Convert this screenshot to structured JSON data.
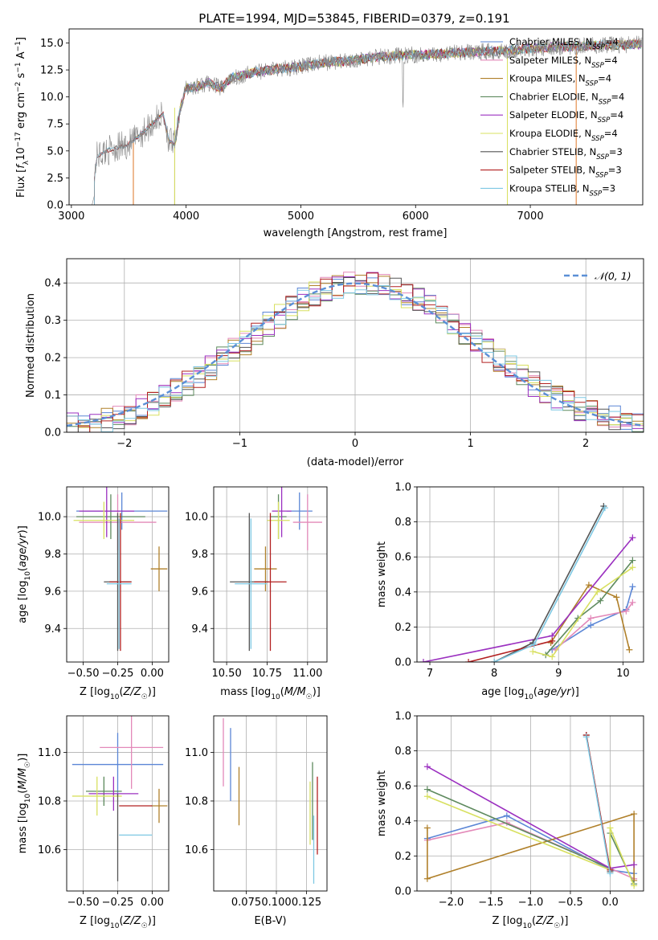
{
  "figure": {
    "title": "PLATE=1994, MJD=53845, FIBERID=0379, z=0.191"
  },
  "colors": {
    "Chabrier MILES": "#5b86d6",
    "Salpeter MILES": "#e389b9",
    "Kroupa MILES": "#b0802a",
    "Chabrier ELODIE": "#5e8a5e",
    "Salpeter ELODIE": "#9b30c0",
    "Kroupa ELODIE": "#d8e060",
    "Chabrier STELIB": "#555555",
    "Salpeter STELIB": "#b22020",
    "Kroupa STELIB": "#7ec8e3",
    "orange": "#e0782a",
    "green": "#5e8a5e",
    "gray": "#888888"
  },
  "chart_data": [
    {
      "id": "spectrum",
      "type": "line",
      "title": "PLATE=1994, MJD=53845, FIBERID=0379, z=0.191",
      "xlabel": "wavelength [Angstrom, rest frame]",
      "ylabel": "Flux [f_λ 10^-17 erg cm^-2 s^-1 A^-1]",
      "xlim": [
        2980,
        7980
      ],
      "ylim": [
        0,
        16.3
      ],
      "xticks": [
        3000,
        4000,
        5000,
        6000,
        7000
      ],
      "yticks": [
        0.0,
        2.5,
        5.0,
        7.5,
        10.0,
        12.5,
        15.0
      ],
      "ytick_labels": [
        "0.0",
        "2.5",
        "5.0",
        "7.5",
        "10.0",
        "12.5",
        "15.0"
      ],
      "legend": "top-right",
      "legend_entries": [
        {
          "name": "Chabrier MILES, N_SSP=4",
          "base": "Chabrier MILES, N",
          "sub": "SSP",
          "tail": "=4"
        },
        {
          "name": "Salpeter MILES, N_SSP=4",
          "base": "Salpeter MILES, N",
          "sub": "SSP",
          "tail": "=4"
        },
        {
          "name": "Kroupa MILES, N_SSP=4",
          "base": "Kroupa MILES, N",
          "sub": "SSP",
          "tail": "=4"
        },
        {
          "name": "Chabrier ELODIE, N_SSP=4",
          "base": "Chabrier ELODIE, N",
          "sub": "SSP",
          "tail": "=4"
        },
        {
          "name": "Salpeter ELODIE, N_SSP=4",
          "base": "Salpeter ELODIE, N",
          "sub": "SSP",
          "tail": "=4"
        },
        {
          "name": "Kroupa ELODIE, N_SSP=4",
          "base": "Kroupa ELODIE, N",
          "sub": "SSP",
          "tail": "=4"
        },
        {
          "name": "Chabrier STELIB, N_SSP=3",
          "base": "Chabrier STELIB, N",
          "sub": "SSP",
          "tail": "=3"
        },
        {
          "name": "Salpeter STELIB, N_SSP=3",
          "base": "Salpeter STELIB, N",
          "sub": "SSP",
          "tail": "=3"
        },
        {
          "name": "Kroupa STELIB, N_SSP=3",
          "base": "Kroupa STELIB, N",
          "sub": "SSP",
          "tail": "=3"
        }
      ],
      "observed": {
        "x": [
          3180,
          3220,
          3300,
          3400,
          3500,
          3600,
          3700,
          3800,
          3850,
          3900,
          3950,
          4000,
          4100,
          4200,
          4300,
          4400,
          4500,
          4600,
          4800,
          5000,
          5200,
          5400,
          5600,
          5800,
          6000,
          6200,
          6400,
          6600,
          6800,
          7000,
          7200,
          7400,
          7600,
          7800,
          7980
        ],
        "y": [
          0.0,
          4.5,
          5.0,
          5.3,
          5.6,
          6.5,
          7.5,
          8.4,
          6.0,
          5.5,
          9.0,
          10.8,
          11.0,
          11.3,
          10.8,
          11.8,
          12.0,
          12.3,
          12.6,
          12.8,
          13.2,
          13.3,
          13.6,
          13.8,
          13.9,
          14.0,
          14.1,
          14.2,
          14.3,
          14.5,
          14.6,
          14.7,
          14.8,
          14.8,
          14.9
        ]
      },
      "model_cutoffs": {
        "MILES": 3540,
        "ELODIE": 3900,
        "STELIB": 3200
      },
      "model_end": {
        "ELODIE": 6800,
        "STELIB": 7400
      }
    },
    {
      "id": "residuals",
      "type": "histogram",
      "xlabel": "(data-model)/error",
      "ylabel": "Normed distribution",
      "xlim": [
        -2.5,
        2.5
      ],
      "ylim": [
        0,
        0.465
      ],
      "xticks": [
        -2,
        -1,
        0,
        1,
        2
      ],
      "xtick_labels": [
        "−2",
        "−1",
        "0",
        "1",
        "2"
      ],
      "yticks": [
        0.0,
        0.1,
        0.2,
        0.3,
        0.4
      ],
      "ytick_labels": [
        "0.0",
        "0.1",
        "0.2",
        "0.3",
        "0.4"
      ],
      "grid": true,
      "legend": "top-right",
      "reference_label": "𝒩(0, 1)",
      "reference": {
        "type": "normal",
        "mean": 0,
        "sigma": 1
      },
      "bin_width": 0.1
    },
    {
      "id": "age-vs-Z",
      "type": "scatter",
      "xlabel": "Z [log10(Z/Z☉)]",
      "ylabel": "age  [log10(age/yr)]",
      "xlim": [
        -0.62,
        0.12
      ],
      "ylim": [
        9.22,
        10.16
      ],
      "xticks": [
        -0.5,
        -0.25,
        0.0
      ],
      "xtick_labels": [
        "−0.50",
        "−0.25",
        "0.00"
      ],
      "yticks": [
        9.4,
        9.6,
        9.8,
        10.0
      ],
      "ytick_labels": [
        "9.4",
        "9.6",
        "9.8",
        "10.0"
      ],
      "grid": true,
      "errorbars": [
        {
          "model": "Chabrier MILES",
          "x": -0.22,
          "xerr": 0.33,
          "y": 10.03,
          "yerr": 0.1
        },
        {
          "model": "Salpeter MILES",
          "x": -0.25,
          "xerr": 0.28,
          "y": 9.97,
          "yerr": 0.15
        },
        {
          "model": "Kroupa MILES",
          "x": 0.05,
          "xerr": 0.06,
          "y": 9.72,
          "yerr": 0.12
        },
        {
          "model": "Chabrier ELODIE",
          "x": -0.3,
          "xerr": 0.25,
          "y": 10.0,
          "yerr": 0.12
        },
        {
          "model": "Salpeter ELODIE",
          "x": -0.33,
          "xerr": 0.2,
          "y": 10.03,
          "yerr": 0.14
        },
        {
          "model": "Kroupa ELODIE",
          "x": -0.35,
          "xerr": 0.22,
          "y": 9.98,
          "yerr": 0.1
        },
        {
          "model": "Chabrier STELIB",
          "x": -0.25,
          "xerr": 0.1,
          "y": 9.65,
          "yerr": 0.37
        },
        {
          "model": "Salpeter STELIB",
          "x": -0.23,
          "xerr": 0.08,
          "y": 9.65,
          "yerr": 0.37
        },
        {
          "model": "Kroupa STELIB",
          "x": -0.24,
          "xerr": 0.09,
          "y": 9.64,
          "yerr": 0.35
        }
      ]
    },
    {
      "id": "age-vs-mass",
      "type": "scatter",
      "xlabel": "mass [log10(M/M☉)]",
      "xlim": [
        10.42,
        11.12
      ],
      "ylim": [
        9.22,
        10.16
      ],
      "xticks": [
        10.5,
        10.75,
        11.0
      ],
      "xtick_labels": [
        "10.50",
        "10.75",
        "11.00"
      ],
      "yticks": [
        9.4,
        9.6,
        9.8,
        10.0
      ],
      "ytick_labels": [
        "9.4",
        "9.6",
        "9.8",
        "10.0"
      ],
      "grid": true,
      "errorbars": [
        {
          "model": "Chabrier MILES",
          "x": 10.95,
          "xerr": 0.08,
          "y": 10.03,
          "yerr": 0.1
        },
        {
          "model": "Salpeter MILES",
          "x": 11.0,
          "xerr": 0.09,
          "y": 9.97,
          "yerr": 0.15
        },
        {
          "model": "Kroupa MILES",
          "x": 10.74,
          "xerr": 0.07,
          "y": 9.72,
          "yerr": 0.12
        },
        {
          "model": "Chabrier ELODIE",
          "x": 10.82,
          "xerr": 0.05,
          "y": 10.0,
          "yerr": 0.12
        },
        {
          "model": "Salpeter ELODIE",
          "x": 10.84,
          "xerr": 0.06,
          "y": 10.03,
          "yerr": 0.14
        },
        {
          "model": "Kroupa ELODIE",
          "x": 10.82,
          "xerr": 0.07,
          "y": 9.98,
          "yerr": 0.1
        },
        {
          "model": "Chabrier STELIB",
          "x": 10.64,
          "xerr": 0.12,
          "y": 9.65,
          "yerr": 0.37
        },
        {
          "model": "Salpeter STELIB",
          "x": 10.77,
          "xerr": 0.1,
          "y": 9.65,
          "yerr": 0.37
        },
        {
          "model": "Kroupa STELIB",
          "x": 10.65,
          "xerr": 0.1,
          "y": 9.64,
          "yerr": 0.35
        }
      ]
    },
    {
      "id": "massweight-vs-age",
      "type": "line",
      "xlabel": "age  [log10(age/yr)]",
      "ylabel": "mass weight",
      "xlim": [
        6.8,
        10.32
      ],
      "ylim": [
        0,
        1.0
      ],
      "xticks": [
        7,
        8,
        9,
        10
      ],
      "xtick_labels": [
        "7",
        "8",
        "9",
        "10"
      ],
      "yticks": [
        0.0,
        0.2,
        0.4,
        0.6,
        0.8,
        1.0
      ],
      "ytick_labels": [
        "0.0",
        "0.2",
        "0.4",
        "0.6",
        "0.8",
        "1.0"
      ],
      "grid": true,
      "series": [
        {
          "model": "Chabrier MILES",
          "x": [
            8.9,
            9.5,
            10.05,
            10.15
          ],
          "y": [
            0.07,
            0.21,
            0.3,
            0.43
          ]
        },
        {
          "model": "Salpeter MILES",
          "x": [
            8.95,
            9.5,
            10.05,
            10.15
          ],
          "y": [
            0.07,
            0.25,
            0.29,
            0.34
          ]
        },
        {
          "model": "Kroupa MILES",
          "x": [
            8.88,
            9.47,
            9.9,
            10.1
          ],
          "y": [
            0.11,
            0.44,
            0.37,
            0.07
          ]
        },
        {
          "model": "Chabrier ELODIE",
          "x": [
            8.8,
            9.3,
            9.65,
            10.15
          ],
          "y": [
            0.04,
            0.25,
            0.35,
            0.58
          ]
        },
        {
          "model": "Salpeter ELODIE",
          "x": [
            6.9,
            8.9,
            10.15
          ],
          "y": [
            0.0,
            0.15,
            0.71
          ]
        },
        {
          "model": "Kroupa ELODIE",
          "x": [
            8.6,
            8.9,
            9.6,
            10.15
          ],
          "y": [
            0.06,
            0.03,
            0.4,
            0.54
          ]
        },
        {
          "model": "Chabrier STELIB",
          "x": [
            8.0,
            8.6,
            9.7
          ],
          "y": [
            0.0,
            0.11,
            0.89
          ]
        },
        {
          "model": "Salpeter STELIB",
          "x": [
            7.6,
            8.9
          ],
          "y": [
            0.0,
            0.12
          ]
        },
        {
          "model": "Kroupa STELIB",
          "x": [
            8.0,
            8.62,
            9.72
          ],
          "y": [
            0.0,
            0.1,
            0.88
          ]
        }
      ]
    },
    {
      "id": "mass-vs-Z",
      "type": "scatter",
      "xlabel": "Z [log10(Z/Z☉)]",
      "ylabel": "mass [log10(M/M☉)]",
      "xlim": [
        -0.62,
        0.12
      ],
      "ylim": [
        10.43,
        11.15
      ],
      "xticks": [
        -0.5,
        -0.25,
        0.0
      ],
      "xtick_labels": [
        "−0.50",
        "−0.25",
        "0.00"
      ],
      "yticks": [
        10.6,
        10.8,
        11.0
      ],
      "ytick_labels": [
        "10.6",
        "10.8",
        "11.0"
      ],
      "grid": true,
      "errorbars": [
        {
          "model": "Chabrier MILES",
          "x": -0.25,
          "xerr": 0.33,
          "y": 10.95,
          "yerr": 0.13
        },
        {
          "model": "Salpeter MILES",
          "x": -0.15,
          "xerr": 0.23,
          "y": 11.02,
          "yerr": 0.17
        },
        {
          "model": "Kroupa MILES",
          "x": 0.05,
          "xerr": 0.06,
          "y": 10.78,
          "yerr": 0.07
        },
        {
          "model": "Chabrier ELODIE",
          "x": -0.35,
          "xerr": 0.13,
          "y": 10.84,
          "yerr": 0.06
        },
        {
          "model": "Salpeter ELODIE",
          "x": -0.28,
          "xerr": 0.18,
          "y": 10.83,
          "yerr": 0.07
        },
        {
          "model": "Kroupa ELODIE",
          "x": -0.4,
          "xerr": 0.18,
          "y": 10.82,
          "yerr": 0.08
        },
        {
          "model": "Chabrier STELIB",
          "x": -0.25,
          "xerr": 0.0,
          "y": 10.65,
          "yerr": 0.18
        },
        {
          "model": "Salpeter STELIB",
          "x": -0.12,
          "xerr": 0.12,
          "y": 10.78,
          "yerr": 0.0
        },
        {
          "model": "Kroupa STELIB",
          "x": -0.12,
          "xerr": 0.12,
          "y": 10.66,
          "yerr": 0.0
        }
      ]
    },
    {
      "id": "mass-vs-EBV",
      "type": "scatter",
      "xlabel": "E(B-V)",
      "xlim": [
        0.048,
        0.142
      ],
      "ylim": [
        10.43,
        11.15
      ],
      "xticks": [
        0.075,
        0.1,
        0.125
      ],
      "xtick_labels": [
        "0.075",
        "0.100",
        "0.125"
      ],
      "yticks": [
        10.6,
        10.8,
        11.0
      ],
      "ytick_labels": [
        "10.6",
        "10.8",
        "11.0"
      ],
      "grid": true,
      "errorbars": [
        {
          "model": "Chabrier MILES",
          "x": 0.062,
          "xerr": 0.0,
          "y": 10.95,
          "yerr": 0.15
        },
        {
          "model": "Salpeter MILES",
          "x": 0.056,
          "xerr": 0.0,
          "y": 11.0,
          "yerr": 0.14
        },
        {
          "model": "Kroupa MILES",
          "x": 0.069,
          "xerr": 0.0,
          "y": 10.82,
          "yerr": 0.12
        },
        {
          "model": "Chabrier ELODIE",
          "x": 0.13,
          "xerr": 0.0,
          "y": 10.8,
          "yerr": 0.16
        },
        {
          "model": "Kroupa ELODIE",
          "x": 0.128,
          "xerr": 0.0,
          "y": 10.75,
          "yerr": 0.13
        },
        {
          "model": "Salpeter STELIB",
          "x": 0.134,
          "xerr": 0.0,
          "y": 10.74,
          "yerr": 0.16
        },
        {
          "model": "Kroupa STELIB",
          "x": 0.131,
          "xerr": 0.0,
          "y": 10.6,
          "yerr": 0.14
        }
      ]
    },
    {
      "id": "massweight-vs-Z",
      "type": "line",
      "xlabel": "Z [log10(Z/Z☉)]",
      "ylabel": "mass weight",
      "xlim": [
        -2.43,
        0.42
      ],
      "ylim": [
        0,
        1.0
      ],
      "xticks": [
        -2.0,
        -1.5,
        -1.0,
        -0.5,
        0.0
      ],
      "xtick_labels": [
        "−2.0",
        "−1.5",
        "−1.0",
        "−0.5",
        "0.0"
      ],
      "yticks": [
        0.0,
        0.2,
        0.4,
        0.6,
        0.8,
        1.0
      ],
      "ytick_labels": [
        "0.0",
        "0.2",
        "0.4",
        "0.6",
        "0.8",
        "1.0"
      ],
      "grid": true,
      "series": [
        {
          "model": "Chabrier MILES",
          "x": [
            -2.3,
            -1.3,
            0.0,
            0.3
          ],
          "y": [
            0.3,
            0.43,
            0.12,
            0.1
          ]
        },
        {
          "model": "Salpeter MILES",
          "x": [
            -2.3,
            -1.3,
            0.0,
            0.3
          ],
          "y": [
            0.29,
            0.39,
            0.13,
            0.07
          ]
        },
        {
          "model": "Kroupa MILES",
          "x": [
            -2.3,
            -2.3,
            0.3,
            0.3
          ],
          "y": [
            0.36,
            0.07,
            0.44,
            0.06
          ]
        },
        {
          "model": "Chabrier ELODIE",
          "x": [
            -2.3,
            0.0,
            0.0,
            0.3
          ],
          "y": [
            0.58,
            0.13,
            0.33,
            0.04
          ]
        },
        {
          "model": "Salpeter ELODIE",
          "x": [
            -2.3,
            0.0,
            0.3
          ],
          "y": [
            0.71,
            0.13,
            0.15
          ]
        },
        {
          "model": "Kroupa ELODIE",
          "x": [
            -2.3,
            0.0,
            0.0,
            0.3
          ],
          "y": [
            0.54,
            0.12,
            0.36,
            0.03
          ]
        },
        {
          "model": "Chabrier STELIB",
          "x": [
            -0.3,
            0.0
          ],
          "y": [
            0.89,
            0.11
          ]
        },
        {
          "model": "Salpeter STELIB",
          "x": [
            -0.3,
            0.0
          ],
          "y": [
            0.89,
            0.12
          ]
        },
        {
          "model": "Kroupa STELIB",
          "x": [
            -0.3,
            0.0
          ],
          "y": [
            0.88,
            0.1
          ]
        }
      ]
    }
  ]
}
